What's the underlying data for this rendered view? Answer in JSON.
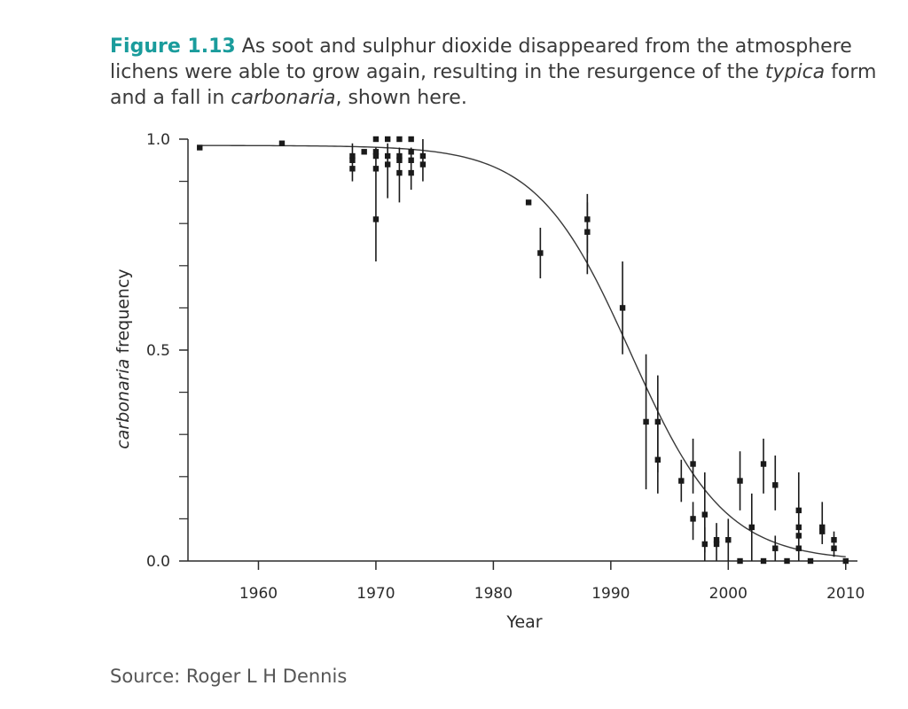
{
  "caption": {
    "figure_label": "Figure 1.13",
    "text_1": " As soot and sulphur dioxide disappeared from the atmosphere lichens were able to grow again, resulting in the resurgence of the ",
    "em_1": "typica",
    "text_2": " form and a fall in ",
    "em_2": "carbonaria",
    "text_3": ", shown here."
  },
  "source": "Source: Roger L H Dennis",
  "colors": {
    "figure_label": "#1a9c9c",
    "marks": "#1a1a1a",
    "axis": "#2b2b2b"
  },
  "chart_data": {
    "type": "scatter",
    "title": "",
    "xlabel": "Year",
    "ylabel_italic": "carbonaria",
    "ylabel_rest": " frequency",
    "xlim": [
      1954,
      2011
    ],
    "ylim": [
      0,
      1
    ],
    "x_ticks": [
      1960,
      1970,
      1980,
      1990,
      2000,
      2010
    ],
    "x_tick_labels": [
      "1960",
      "1970",
      "1980",
      "1990",
      "2000",
      "2010"
    ],
    "y_ticks_major": [
      0,
      0.5,
      1
    ],
    "y_tick_labels": [
      "0.0",
      "0.5",
      "1.0"
    ],
    "y_ticks_minor": [
      0.1,
      0.2,
      0.3,
      0.4,
      0.6,
      0.7,
      0.8,
      0.9
    ],
    "grid": false,
    "fit_curve": {
      "type": "logistic",
      "upper": 0.985,
      "midpoint": 1991.7,
      "rate": 0.25
    },
    "points": [
      {
        "x": 1955,
        "y": 0.98
      },
      {
        "x": 1962,
        "y": 0.99
      },
      {
        "x": 1968,
        "y": 0.96,
        "ylo": 0.9,
        "yhi": 0.99
      },
      {
        "x": 1968,
        "y": 0.93
      },
      {
        "x": 1968,
        "y": 0.95
      },
      {
        "x": 1969,
        "y": 0.97
      },
      {
        "x": 1970,
        "y": 1.0
      },
      {
        "x": 1970,
        "y": 0.97
      },
      {
        "x": 1970,
        "y": 0.96
      },
      {
        "x": 1970,
        "y": 0.93
      },
      {
        "x": 1970,
        "y": 0.81,
        "ylo": 0.71,
        "yhi": 0.98
      },
      {
        "x": 1971,
        "y": 1.0
      },
      {
        "x": 1971,
        "y": 0.96
      },
      {
        "x": 1971,
        "y": 0.94,
        "ylo": 0.86,
        "yhi": 0.99
      },
      {
        "x": 1972,
        "y": 1.0
      },
      {
        "x": 1972,
        "y": 0.96
      },
      {
        "x": 1972,
        "y": 0.95
      },
      {
        "x": 1972,
        "y": 0.92,
        "ylo": 0.85,
        "yhi": 0.98
      },
      {
        "x": 1973,
        "y": 1.0
      },
      {
        "x": 1973,
        "y": 0.97
      },
      {
        "x": 1973,
        "y": 0.95
      },
      {
        "x": 1973,
        "y": 0.92,
        "ylo": 0.88,
        "yhi": 0.98
      },
      {
        "x": 1974,
        "y": 0.96,
        "ylo": 0.9,
        "yhi": 1.0
      },
      {
        "x": 1974,
        "y": 0.94
      },
      {
        "x": 1983,
        "y": 0.85
      },
      {
        "x": 1984,
        "y": 0.73,
        "ylo": 0.67,
        "yhi": 0.79
      },
      {
        "x": 1988,
        "y": 0.81,
        "ylo": 0.73,
        "yhi": 0.87
      },
      {
        "x": 1988,
        "y": 0.78,
        "ylo": 0.68,
        "yhi": 0.85
      },
      {
        "x": 1991,
        "y": 0.6,
        "ylo": 0.49,
        "yhi": 0.71
      },
      {
        "x": 1993,
        "y": 0.33,
        "ylo": 0.17,
        "yhi": 0.49
      },
      {
        "x": 1994,
        "y": 0.33,
        "ylo": 0.21,
        "yhi": 0.44
      },
      {
        "x": 1994,
        "y": 0.24,
        "ylo": 0.16,
        "yhi": 0.33
      },
      {
        "x": 1996,
        "y": 0.19,
        "ylo": 0.14,
        "yhi": 0.24
      },
      {
        "x": 1997,
        "y": 0.23,
        "ylo": 0.16,
        "yhi": 0.29
      },
      {
        "x": 1997,
        "y": 0.1,
        "ylo": 0.05,
        "yhi": 0.14
      },
      {
        "x": 1998,
        "y": 0.11,
        "ylo": 0.02,
        "yhi": 0.21
      },
      {
        "x": 1998,
        "y": 0.04,
        "ylo": 0.0,
        "yhi": 0.08
      },
      {
        "x": 1999,
        "y": 0.04,
        "ylo": 0.0,
        "yhi": 0.09
      },
      {
        "x": 1999,
        "y": 0.05
      },
      {
        "x": 2000,
        "y": 0.05,
        "ylo": 0.0,
        "yhi": 0.1
      },
      {
        "x": 2001,
        "y": 0.19,
        "ylo": 0.12,
        "yhi": 0.26
      },
      {
        "x": 2001,
        "y": 0.0
      },
      {
        "x": 2002,
        "y": 0.08,
        "ylo": 0.0,
        "yhi": 0.16
      },
      {
        "x": 2003,
        "y": 0.23,
        "ylo": 0.16,
        "yhi": 0.29
      },
      {
        "x": 2003,
        "y": 0.0
      },
      {
        "x": 2004,
        "y": 0.18,
        "ylo": 0.12,
        "yhi": 0.25
      },
      {
        "x": 2004,
        "y": 0.03,
        "ylo": 0.0,
        "yhi": 0.06
      },
      {
        "x": 2005,
        "y": 0.0
      },
      {
        "x": 2006,
        "y": 0.12,
        "ylo": 0.05,
        "yhi": 0.21
      },
      {
        "x": 2006,
        "y": 0.08
      },
      {
        "x": 2006,
        "y": 0.06
      },
      {
        "x": 2006,
        "y": 0.03,
        "ylo": 0.0,
        "yhi": 0.07
      },
      {
        "x": 2007,
        "y": 0.0
      },
      {
        "x": 2008,
        "y": 0.08,
        "ylo": 0.04,
        "yhi": 0.14
      },
      {
        "x": 2008,
        "y": 0.07
      },
      {
        "x": 2009,
        "y": 0.05,
        "ylo": 0.01,
        "yhi": 0.07
      },
      {
        "x": 2009,
        "y": 0.03
      },
      {
        "x": 2010,
        "y": 0.0
      }
    ]
  }
}
